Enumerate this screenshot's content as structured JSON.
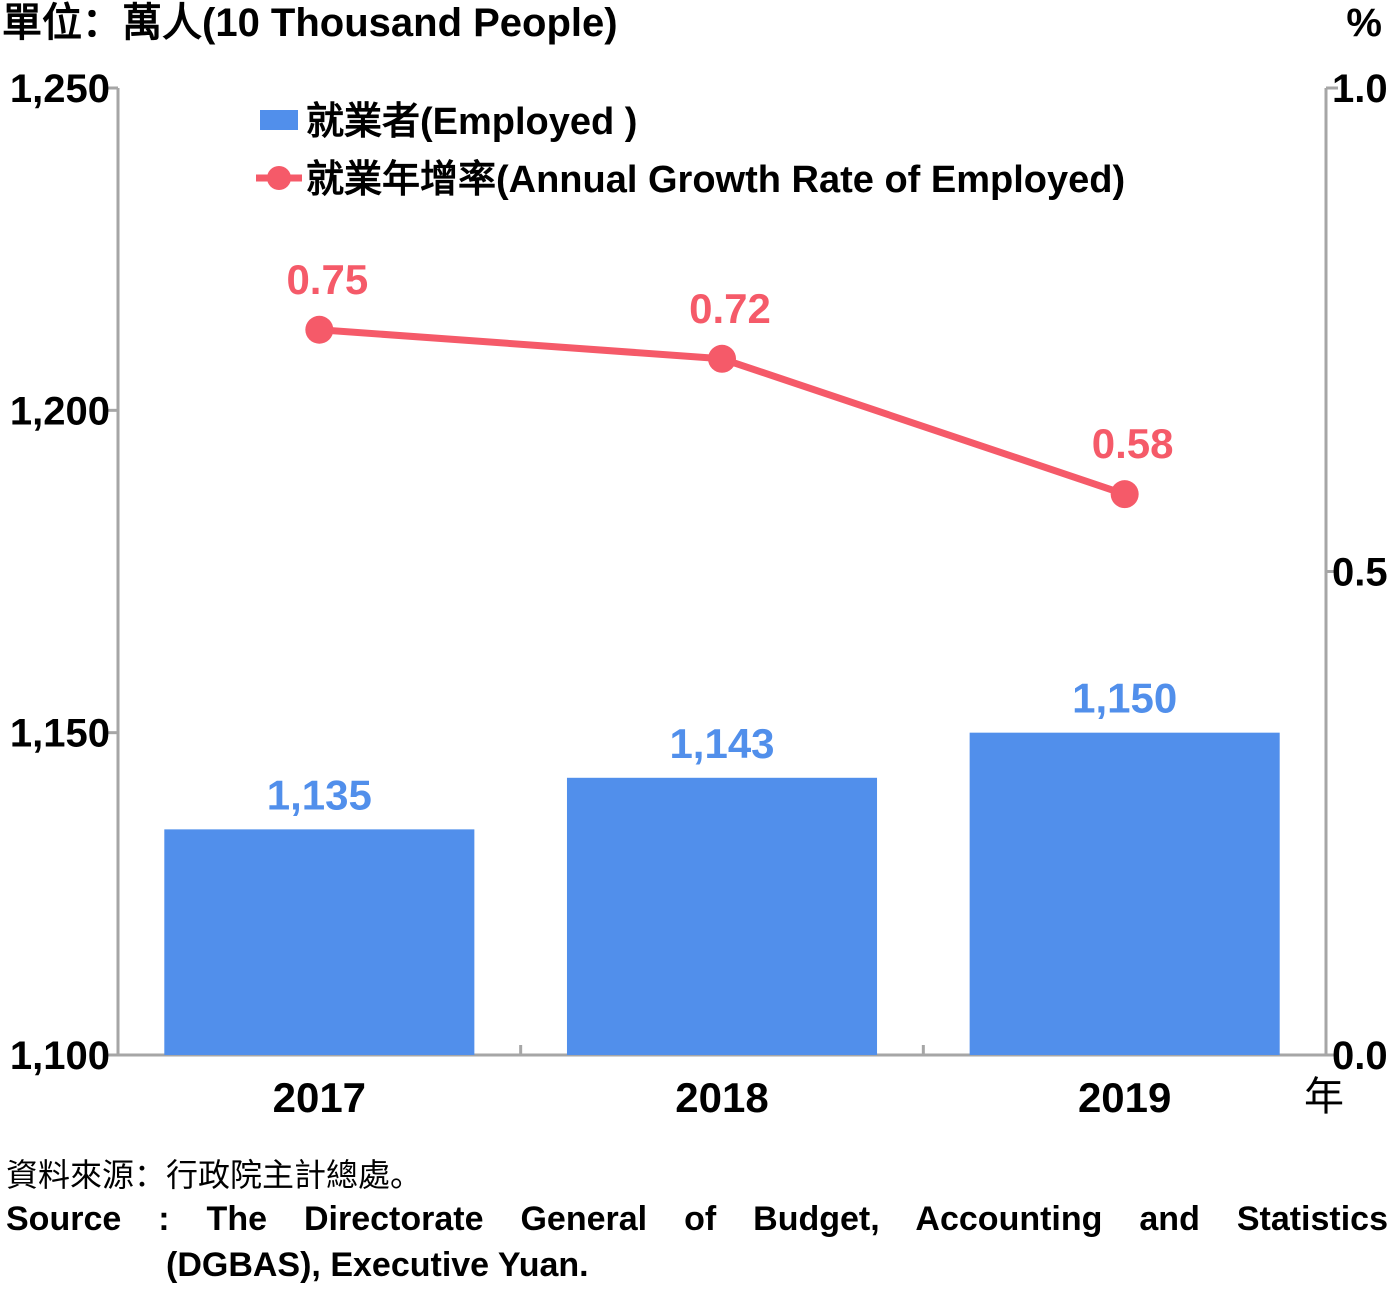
{
  "header": {
    "left_unit": "單位：萬人(10 Thousand People)",
    "right_unit": "%",
    "x_unit": "年"
  },
  "chart_data": {
    "type": "bar+line",
    "categories": [
      "2017",
      "2018",
      "2019"
    ],
    "series": [
      {
        "name": "就業者(Employed )",
        "type": "bar",
        "axis": "left",
        "values": [
          1135,
          1143,
          1150
        ],
        "labels": [
          "1,135",
          "1,143",
          "1,150"
        ],
        "color": "#518FEB"
      },
      {
        "name": "就業年增率(Annual Growth Rate of Employed)",
        "type": "line",
        "axis": "right",
        "values": [
          0.75,
          0.72,
          0.58
        ],
        "labels": [
          "0.75",
          "0.72",
          "0.58"
        ],
        "color": "#F55A69"
      }
    ],
    "y_left": {
      "min": 1100,
      "max": 1250,
      "ticks": [
        1100,
        1150,
        1200,
        1250
      ],
      "tick_labels": [
        "1,100",
        "1,150",
        "1,200",
        "1,250"
      ]
    },
    "y_right": {
      "min": 0.0,
      "max": 1.0,
      "ticks": [
        0.0,
        0.5,
        1.0
      ],
      "tick_labels": [
        "0.0",
        "0.5",
        "1.0"
      ]
    },
    "grid": false,
    "legend_position": "top-left"
  },
  "source": {
    "zh": "資料來源：行政院主計總處。",
    "en_line1": "Source : The Directorate General of Budget, Accounting and Statistics",
    "en_line2": "(DGBAS), Executive Yuan."
  }
}
